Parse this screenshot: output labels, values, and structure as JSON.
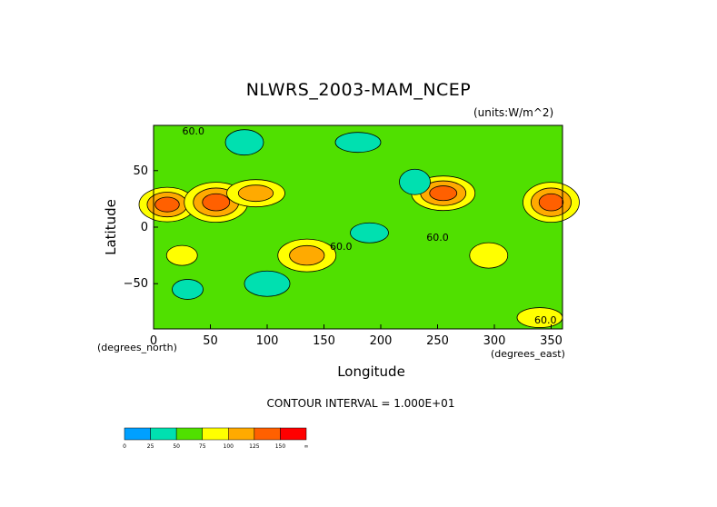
{
  "chart_data": {
    "type": "heatmap",
    "title": "NLWRS_2003-MAM_NCEP",
    "units_label": "(units:W/m^2)",
    "xlabel": "Longitude",
    "ylabel": "Latitude",
    "x_unit_label": "(degrees_east)",
    "y_unit_label": "(degrees_north)",
    "xlim": [
      0,
      360
    ],
    "ylim": [
      -90,
      90
    ],
    "x_ticks": [
      0,
      50,
      100,
      150,
      200,
      250,
      300,
      350
    ],
    "y_ticks": [
      -50,
      0,
      50
    ],
    "contour_interval_text": "CONTOUR INTERVAL = 1.000E+01",
    "contour_labels": [
      "60.0",
      "60.0",
      "60.0",
      "60.0"
    ],
    "colorbar": {
      "levels": [
        "0",
        "25",
        "50",
        "75",
        "100",
        "125",
        "150",
        "∞"
      ],
      "colors": [
        "#00a0ff",
        "#00e0b0",
        "#50e000",
        "#ffff00",
        "#ffaa00",
        "#ff6000",
        "#ff0000"
      ]
    },
    "background_level": 50,
    "regions": [
      {
        "lon": 12,
        "lat": 20,
        "value": 125
      },
      {
        "lon": 55,
        "lat": 22,
        "value": 115
      },
      {
        "lon": 90,
        "lat": 30,
        "value": 100
      },
      {
        "lon": 350,
        "lat": 22,
        "value": 120
      },
      {
        "lon": 255,
        "lat": 30,
        "value": 115
      },
      {
        "lon": 135,
        "lat": -25,
        "value": 105
      },
      {
        "lon": 25,
        "lat": -25,
        "value": 80
      },
      {
        "lon": 295,
        "lat": -25,
        "value": 75
      },
      {
        "lon": 340,
        "lat": -80,
        "value": 80
      },
      {
        "lon": 230,
        "lat": 40,
        "value": 30
      },
      {
        "lon": 190,
        "lat": -5,
        "value": 30
      },
      {
        "lon": 100,
        "lat": -50,
        "value": 35
      },
      {
        "lon": 30,
        "lat": -55,
        "value": 40
      },
      {
        "lon": 80,
        "lat": 75,
        "value": 35
      },
      {
        "lon": 180,
        "lat": 75,
        "value": 40
      }
    ]
  }
}
